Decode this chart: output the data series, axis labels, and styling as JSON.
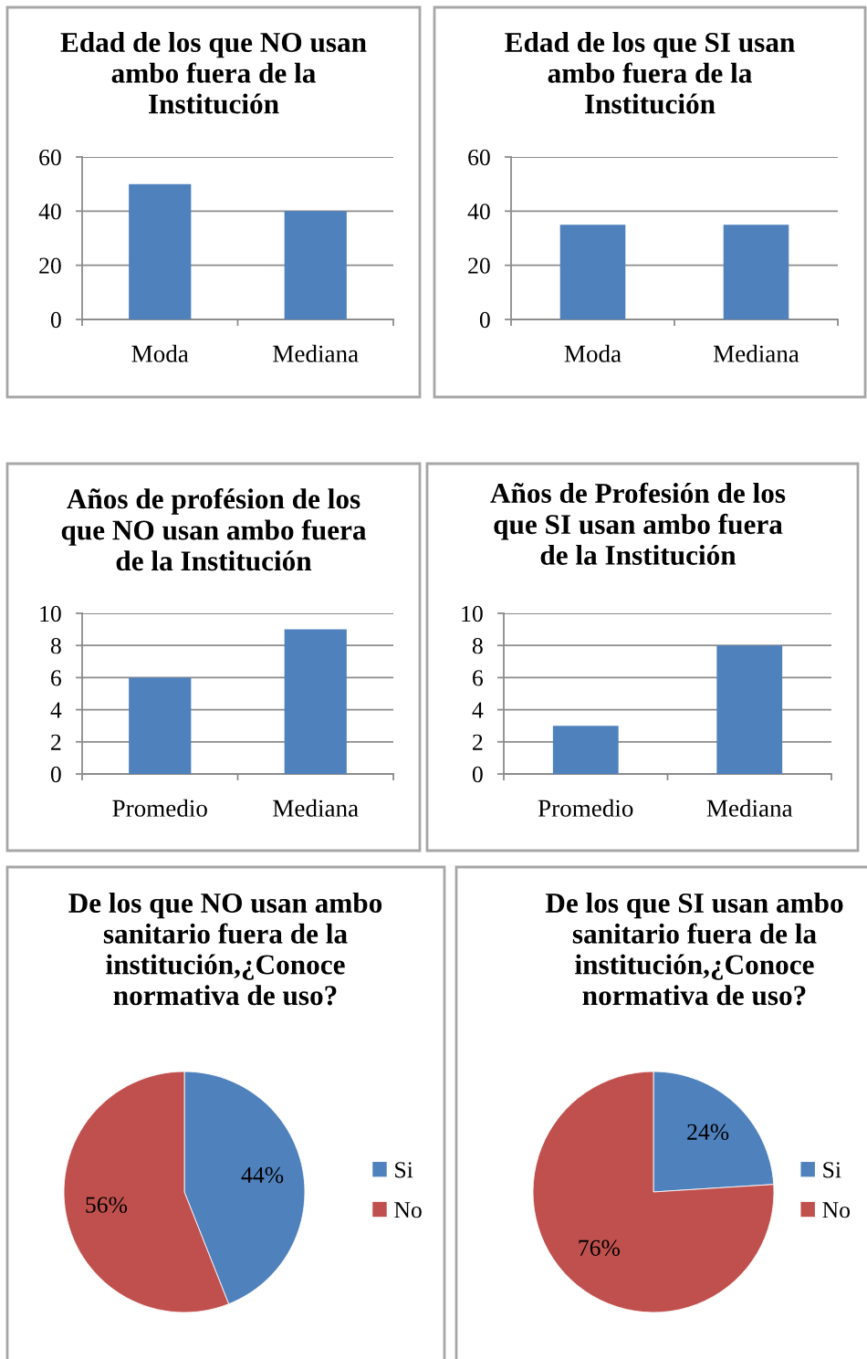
{
  "chart_data": [
    {
      "type": "bar",
      "title": "Edad de los que NO usan\nambo fuera de la\nInstitución",
      "categories": [
        "Moda",
        "Mediana"
      ],
      "values": [
        50,
        40
      ],
      "color": "#4f81bd",
      "ylim": [
        0,
        60
      ],
      "yticks": [
        0,
        20,
        40,
        60
      ],
      "grid": "y"
    },
    {
      "type": "bar",
      "title": "Edad de los que SI usan\nambo fuera de la\nInstitución",
      "categories": [
        "Moda",
        "Mediana"
      ],
      "values": [
        35,
        35
      ],
      "color": "#4f81bd",
      "ylim": [
        0,
        60
      ],
      "yticks": [
        0,
        20,
        40,
        60
      ],
      "grid": "y"
    },
    {
      "type": "bar",
      "title": "Años de profésion de los\nque NO usan ambo fuera\nde la Institución",
      "categories": [
        "Promedio",
        "Mediana"
      ],
      "values": [
        6,
        9
      ],
      "color": "#4f81bd",
      "ylim": [
        0,
        10
      ],
      "yticks": [
        0,
        2,
        4,
        6,
        8,
        10
      ],
      "grid": "y"
    },
    {
      "type": "bar",
      "title": "Años de Profesión de los\nque SI usan ambo fuera\nde la Institución",
      "categories": [
        "Promedio",
        "Mediana"
      ],
      "values": [
        3,
        8
      ],
      "color": "#4f81bd",
      "ylim": [
        0,
        10
      ],
      "yticks": [
        0,
        2,
        4,
        6,
        8,
        10
      ],
      "grid": "y"
    },
    {
      "type": "pie",
      "title": "De los que NO usan ambo\nsanitario fuera de la\ninstitución,¿Conoce\nnormativa de uso?",
      "categories": [
        "Si",
        "No"
      ],
      "values": [
        44,
        56
      ],
      "colors": [
        "#4f81bd",
        "#c0504d"
      ],
      "value_labels": [
        "44%",
        "56%"
      ],
      "legend": "right"
    },
    {
      "type": "pie",
      "title": "De los que SI usan ambo\nsanitario fuera de la\ninstitución,¿Conoce\nnormativa de uso?",
      "categories": [
        "Si",
        "No"
      ],
      "values": [
        24,
        76
      ],
      "colors": [
        "#4f81bd",
        "#c0504d"
      ],
      "value_labels": [
        "24%",
        "76%"
      ],
      "legend": "right"
    }
  ]
}
